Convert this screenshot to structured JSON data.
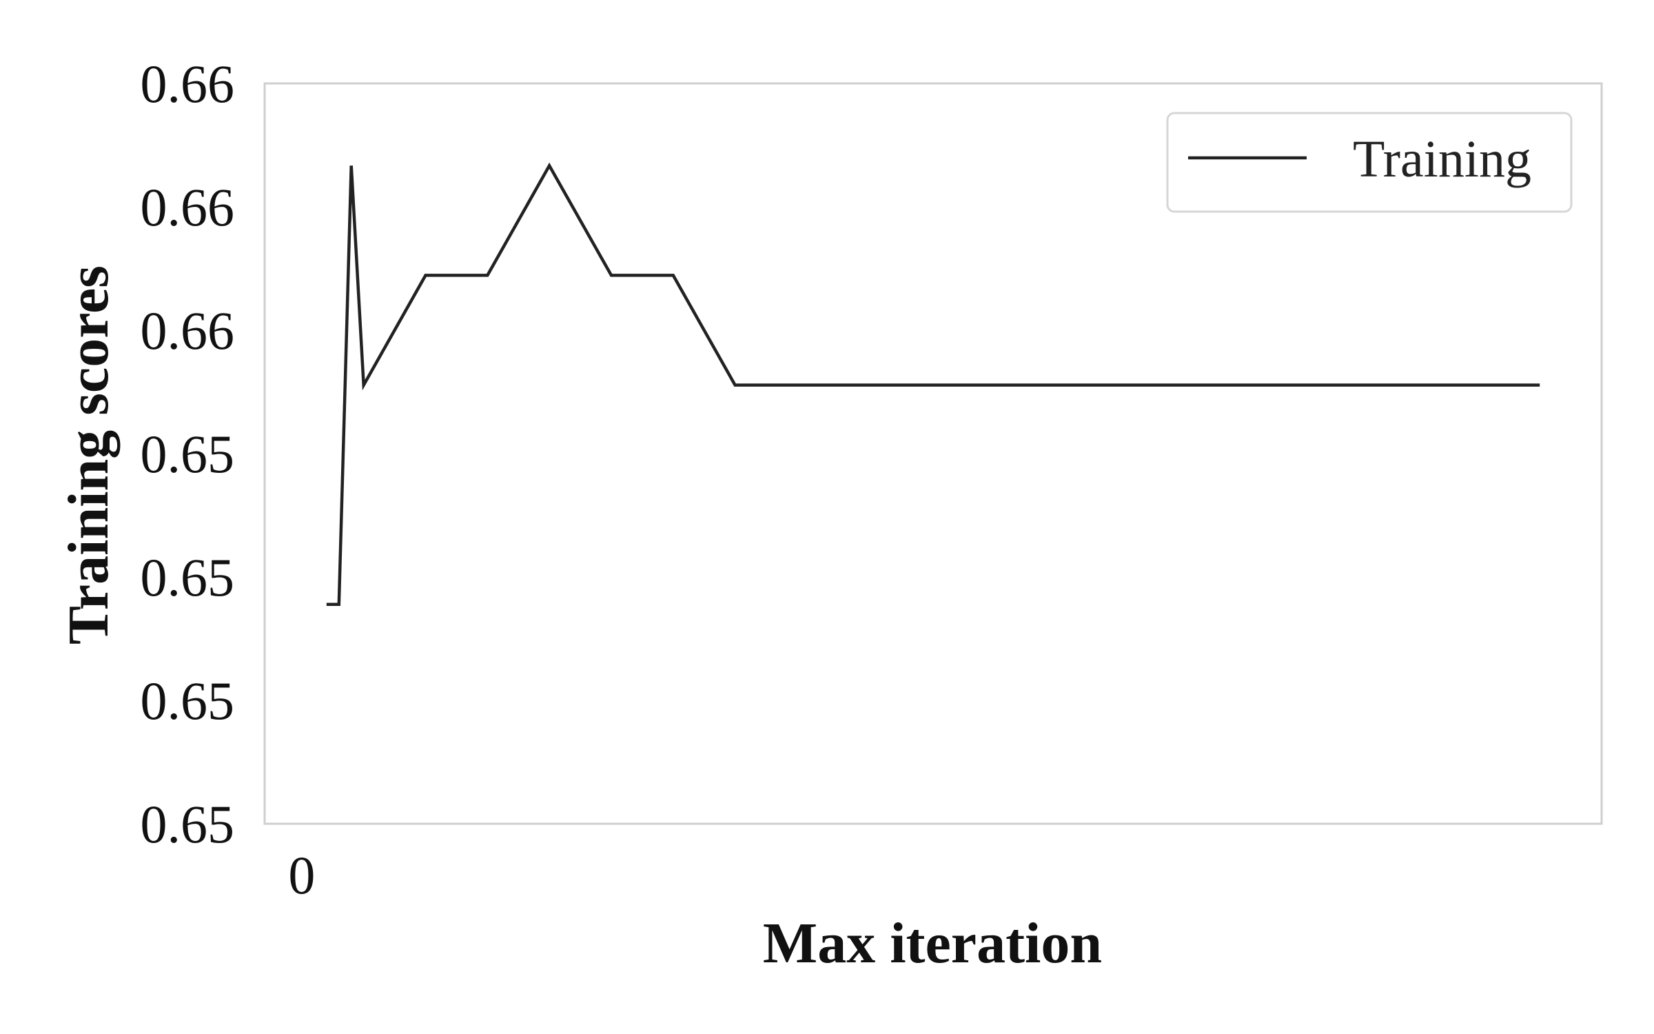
{
  "chart_data": {
    "type": "line",
    "title": "",
    "xlabel": "Max iteration",
    "ylabel": "Training scores",
    "x_tick_labels": [
      "0"
    ],
    "y_tick_labels": [
      "0.65",
      "0.65",
      "0.65",
      "0.65",
      "0.66",
      "0.66",
      "0.66"
    ],
    "legend": {
      "position": "upper-right",
      "entries": [
        "Training"
      ]
    },
    "grid": false,
    "series": [
      {
        "name": "Training",
        "color": "#222222",
        "points": [
          {
            "x": 40,
            "y": 0.651
          },
          {
            "x": 60,
            "y": 0.651
          },
          {
            "x": 80,
            "y": 0.659
          },
          {
            "x": 100,
            "y": 0.655
          },
          {
            "x": 200,
            "y": 0.657
          },
          {
            "x": 300,
            "y": 0.657
          },
          {
            "x": 400,
            "y": 0.659
          },
          {
            "x": 500,
            "y": 0.657
          },
          {
            "x": 600,
            "y": 0.657
          },
          {
            "x": 700,
            "y": 0.655
          },
          {
            "x": 2000,
            "y": 0.655
          }
        ]
      }
    ],
    "xlim": [
      -60,
      2100
    ],
    "ylim": [
      0.647,
      0.6605
    ]
  }
}
